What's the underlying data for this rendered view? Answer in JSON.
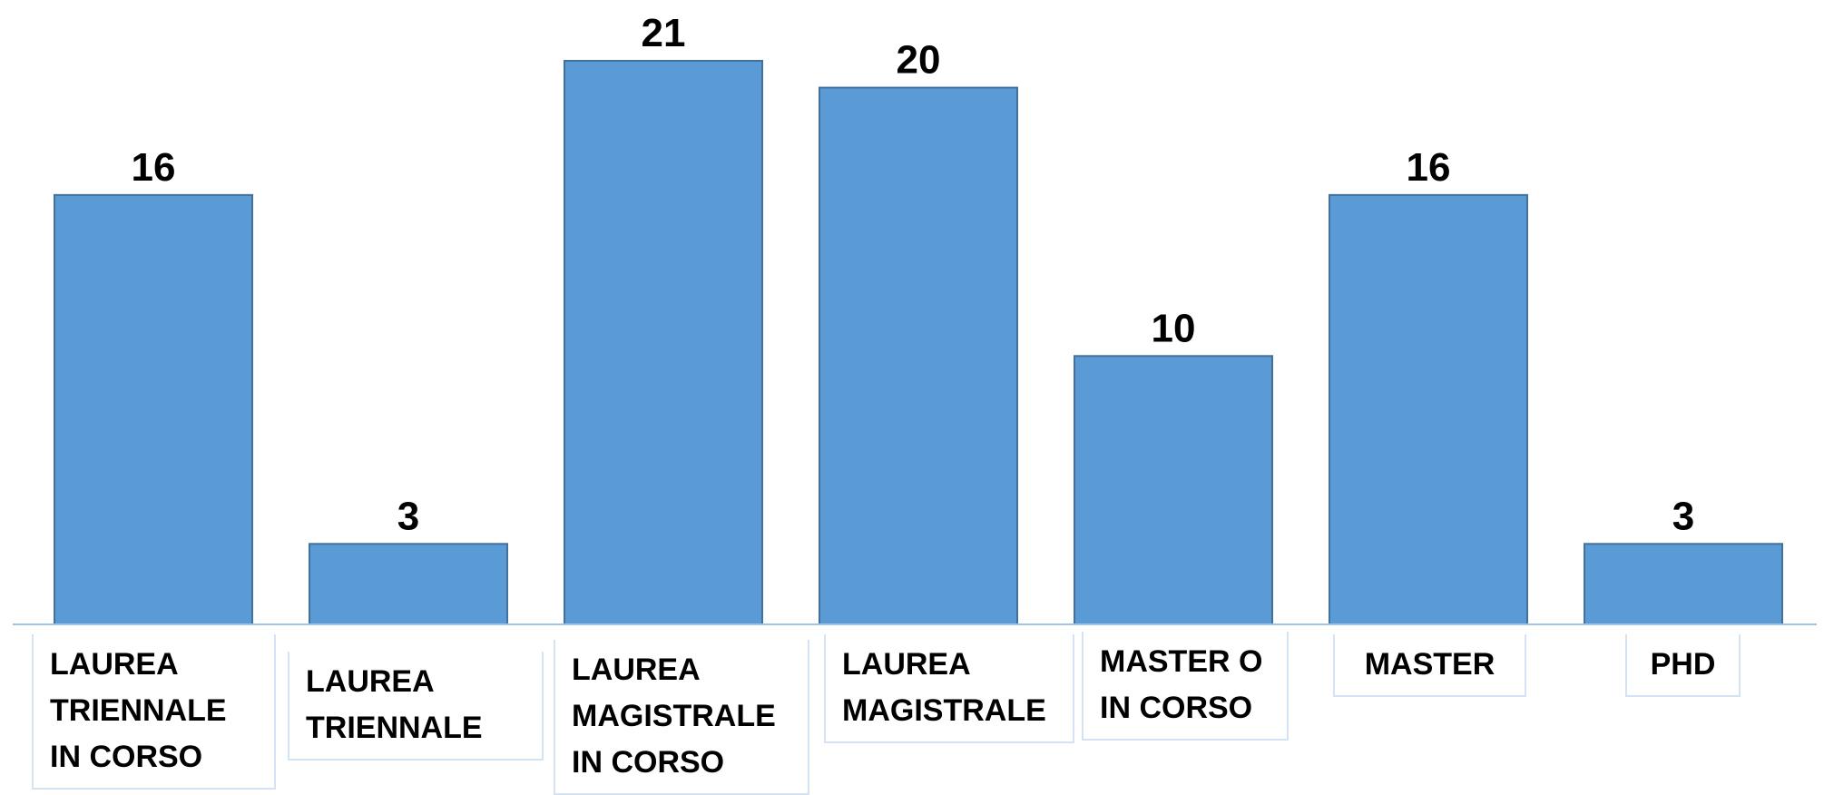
{
  "chart_data": {
    "type": "bar",
    "categories": [
      "LAUREA TRIENNALE IN CORSO",
      "LAUREA TRIENNALE",
      "LAUREA MAGISTRALE IN CORSO",
      "LAUREA MAGISTRALE",
      "MASTER O IN CORSO",
      "MASTER",
      "PHD"
    ],
    "values": [
      16,
      3,
      21,
      20,
      10,
      16,
      3
    ],
    "color": "#5b9bd5",
    "ylim": [
      0,
      21
    ]
  }
}
